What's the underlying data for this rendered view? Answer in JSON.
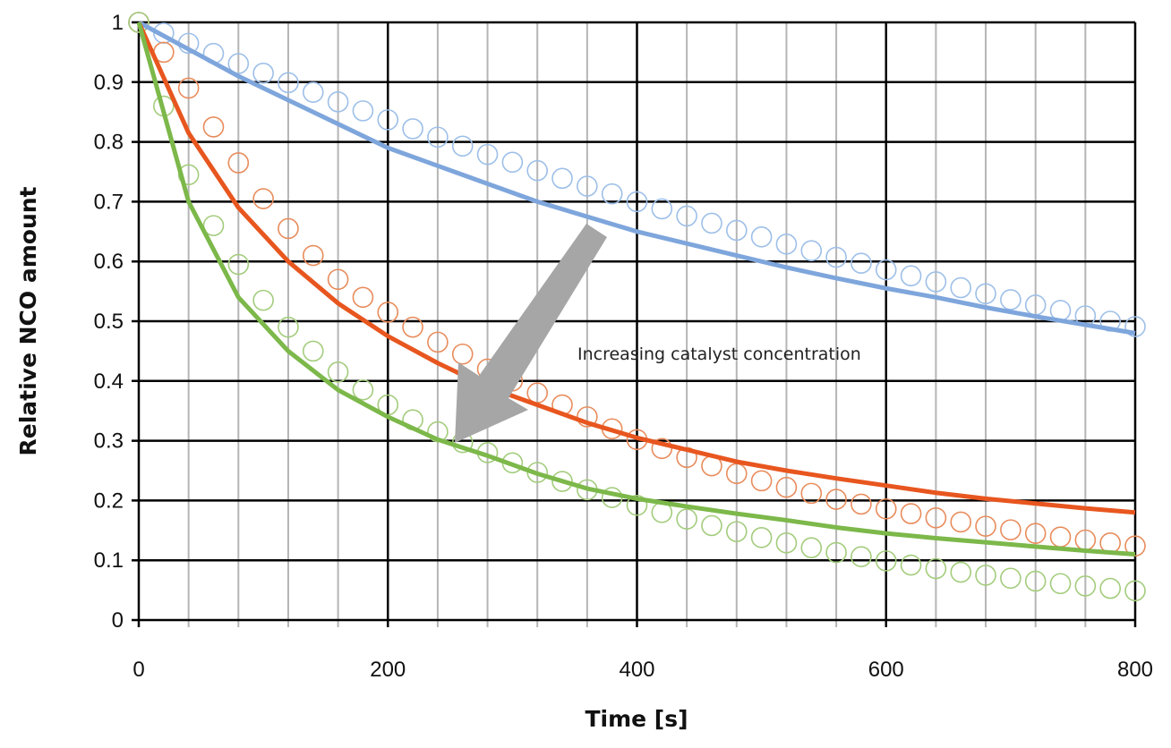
{
  "chart_data": {
    "type": "scatter+line",
    "title": "",
    "xlabel": "Time [s]",
    "ylabel": "Relative NCO amount",
    "xlim": [
      0,
      800
    ],
    "ylim": [
      0,
      1
    ],
    "x_ticks": [
      "0",
      "200",
      "400",
      "600",
      "800"
    ],
    "y_ticks": [
      "0",
      "0.1",
      "0.2",
      "0.3",
      "0.4",
      "0.5",
      "0.6",
      "0.7",
      "0.8",
      "0.9",
      "1"
    ],
    "grid": {
      "major_x": true,
      "minor_x_step": 40,
      "major_y": true
    },
    "legend": "none",
    "annotation": "Increasing catalyst concentration",
    "colors": {
      "blue_line": "#7ea6dc",
      "blue_markers": "#9dbfe8",
      "orange_line": "#e8561f",
      "orange_markers": "#e88c5c",
      "green_line": "#7cb84a",
      "green_markers": "#a3cc7c",
      "arrow": "#a6a6a6"
    },
    "marker_x": [
      0,
      20,
      40,
      60,
      80,
      100,
      120,
      140,
      160,
      180,
      200,
      220,
      240,
      260,
      280,
      300,
      320,
      340,
      360,
      380,
      400,
      420,
      440,
      460,
      480,
      500,
      520,
      540,
      560,
      580,
      600,
      620,
      640,
      660,
      680,
      700,
      720,
      740,
      760,
      780,
      800
    ],
    "line_x": [
      0,
      40,
      80,
      120,
      160,
      200,
      240,
      280,
      320,
      360,
      400,
      440,
      480,
      520,
      560,
      600,
      640,
      680,
      720,
      760,
      800
    ],
    "series": [
      {
        "kind": "markers",
        "color_key": "blue_markers",
        "values": [
          1,
          0.982,
          0.965,
          0.948,
          0.931,
          0.915,
          0.899,
          0.883,
          0.867,
          0.852,
          0.837,
          0.822,
          0.808,
          0.793,
          0.779,
          0.766,
          0.752,
          0.739,
          0.726,
          0.713,
          0.7,
          0.688,
          0.676,
          0.664,
          0.652,
          0.641,
          0.629,
          0.618,
          0.607,
          0.597,
          0.586,
          0.576,
          0.566,
          0.556,
          0.546,
          0.536,
          0.527,
          0.518,
          0.509,
          0.5,
          0.491
        ]
      },
      {
        "kind": "markers",
        "color_key": "orange_markers",
        "values": [
          1,
          0.95,
          0.89,
          0.825,
          0.765,
          0.705,
          0.655,
          0.61,
          0.57,
          0.54,
          0.515,
          0.49,
          0.465,
          0.445,
          0.42,
          0.4,
          0.38,
          0.36,
          0.34,
          0.32,
          0.302,
          0.287,
          0.272,
          0.258,
          0.245,
          0.233,
          0.222,
          0.212,
          0.202,
          0.194,
          0.186,
          0.178,
          0.171,
          0.164,
          0.157,
          0.151,
          0.145,
          0.139,
          0.134,
          0.129,
          0.124
        ]
      },
      {
        "kind": "markers",
        "color_key": "green_markers",
        "values": [
          1,
          0.86,
          0.745,
          0.66,
          0.595,
          0.535,
          0.49,
          0.45,
          0.415,
          0.385,
          0.36,
          0.335,
          0.315,
          0.297,
          0.28,
          0.263,
          0.247,
          0.232,
          0.218,
          0.205,
          0.192,
          0.18,
          0.169,
          0.158,
          0.148,
          0.138,
          0.129,
          0.121,
          0.113,
          0.106,
          0.099,
          0.092,
          0.086,
          0.08,
          0.075,
          0.07,
          0.065,
          0.061,
          0.057,
          0.053,
          0.049
        ]
      },
      {
        "kind": "line",
        "color_key": "blue_line",
        "values": [
          1,
          0.955,
          0.91,
          0.87,
          0.83,
          0.79,
          0.76,
          0.73,
          0.7,
          0.675,
          0.65,
          0.63,
          0.61,
          0.59,
          0.572,
          0.555,
          0.54,
          0.523,
          0.508,
          0.494,
          0.48
        ]
      },
      {
        "kind": "line",
        "color_key": "orange_line",
        "values": [
          1,
          0.815,
          0.69,
          0.6,
          0.53,
          0.475,
          0.43,
          0.39,
          0.36,
          0.33,
          0.305,
          0.285,
          0.265,
          0.25,
          0.237,
          0.225,
          0.213,
          0.203,
          0.195,
          0.187,
          0.18
        ]
      },
      {
        "kind": "line",
        "color_key": "green_line",
        "values": [
          1,
          0.7,
          0.54,
          0.45,
          0.385,
          0.34,
          0.302,
          0.275,
          0.245,
          0.22,
          0.203,
          0.19,
          0.178,
          0.167,
          0.155,
          0.145,
          0.137,
          0.13,
          0.123,
          0.116,
          0.11
        ]
      }
    ]
  }
}
